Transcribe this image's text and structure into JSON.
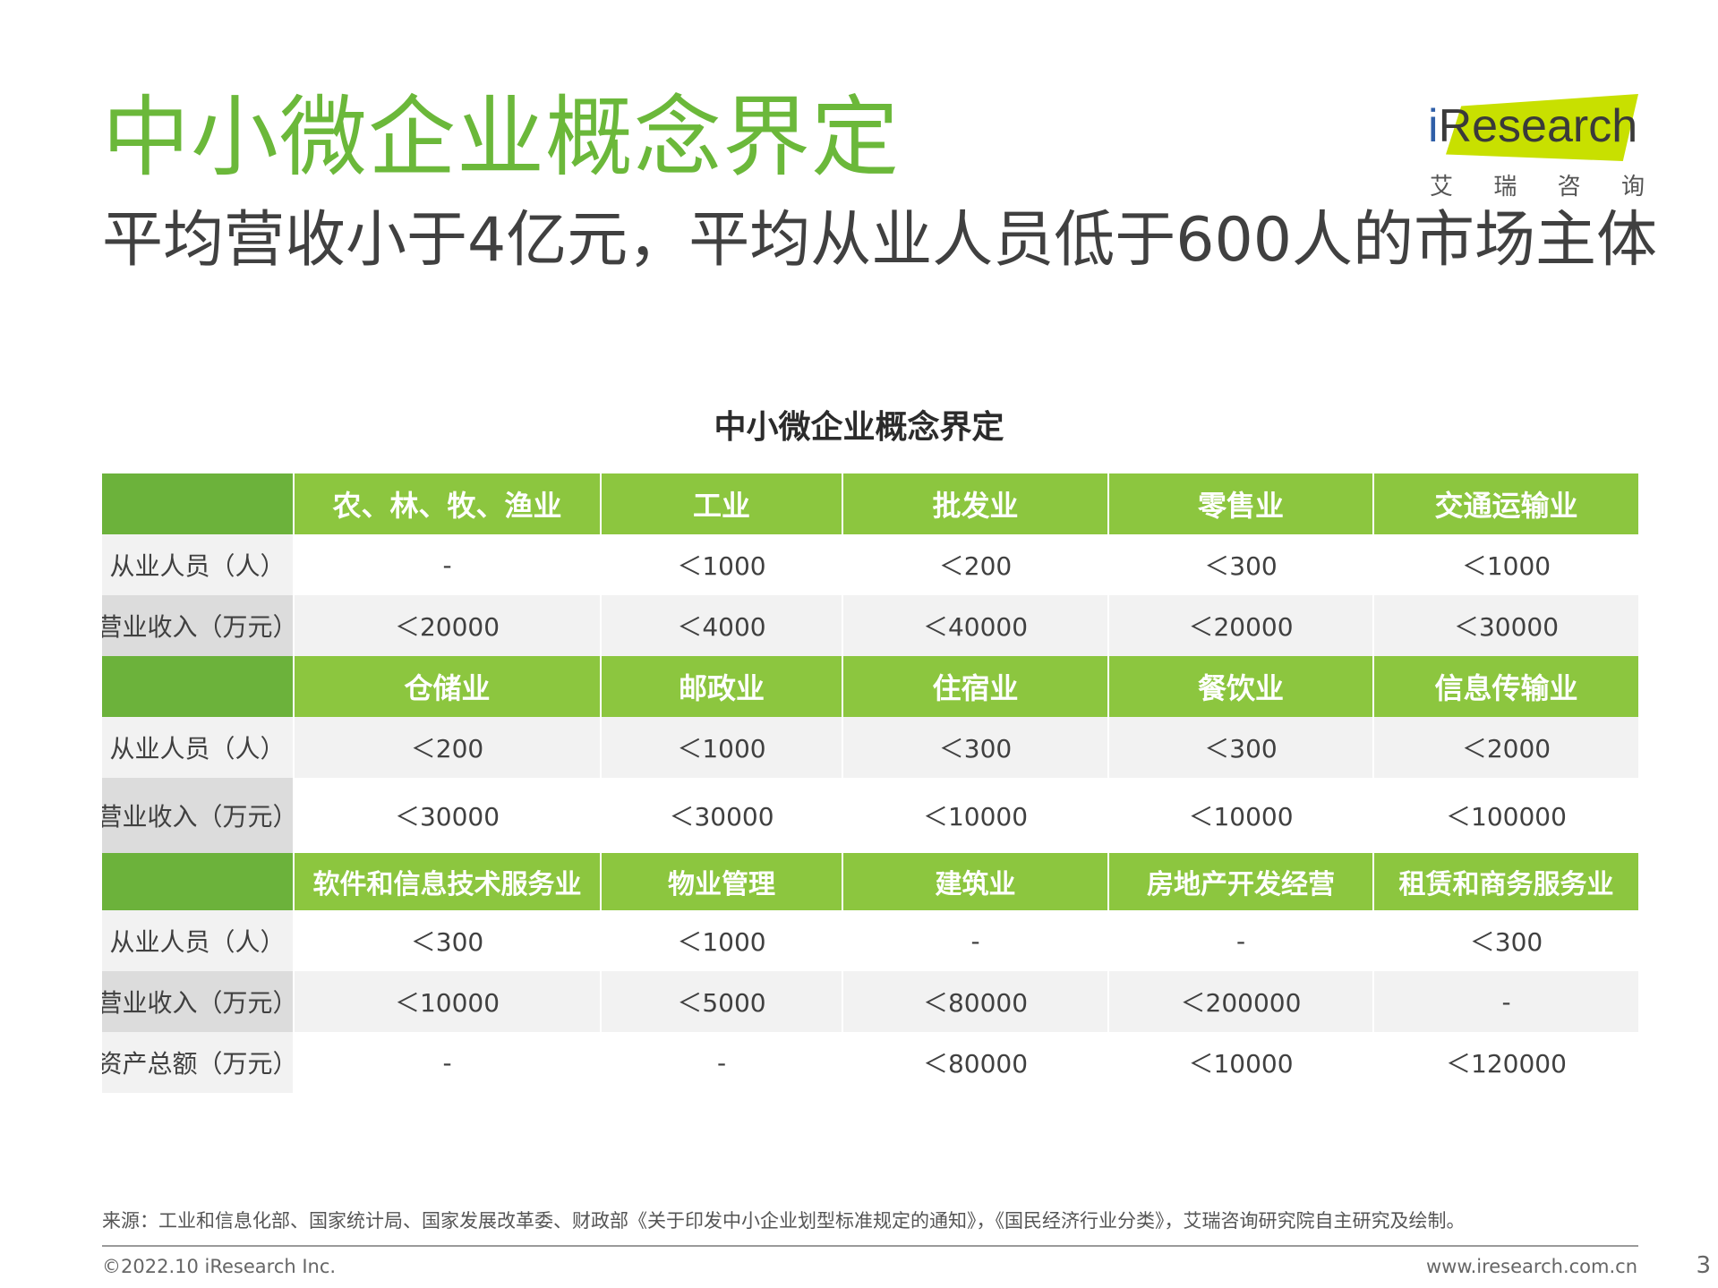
{
  "title": "中小微企业概念界定",
  "subtitle": "平均营收小于4亿元，平均从业人员低于600人的市场主体",
  "logo": {
    "word_dot": "i",
    "word_rest": "Research",
    "cn": [
      "艾",
      "瑞",
      "咨",
      "询"
    ]
  },
  "table": {
    "title": "中小微企业概念界定",
    "sections": [
      {
        "industries": [
          "农、林、牧、渔业",
          "工业",
          "批发业",
          "零售业",
          "交通运输业"
        ],
        "rows": [
          {
            "label": "从业人员（人）",
            "values": [
              "-",
              "＜1000",
              "＜200",
              "＜300",
              "＜1000"
            ]
          },
          {
            "label": "营业收入（万元）",
            "values": [
              "＜20000",
              "＜4000",
              "＜40000",
              "＜20000",
              "＜30000"
            ]
          }
        ]
      },
      {
        "industries": [
          "仓储业",
          "邮政业",
          "住宿业",
          "餐饮业",
          "信息传输业"
        ],
        "rows": [
          {
            "label": "从业人员（人）",
            "values": [
              "＜200",
              "＜1000",
              "＜300",
              "＜300",
              "＜2000"
            ]
          },
          {
            "label": "营业收入（万元）",
            "values": [
              "＜30000",
              "＜30000",
              "＜10000",
              "＜10000",
              "＜100000"
            ]
          }
        ]
      },
      {
        "industries": [
          "软件和信息技术服务业",
          "物业管理",
          "建筑业",
          "房地产开发经营",
          "租赁和商务服务业"
        ],
        "rows": [
          {
            "label": "从业人员（人）",
            "values": [
              "＜300",
              "＜1000",
              "-",
              "-",
              "＜300"
            ]
          },
          {
            "label": "营业收入（万元）",
            "values": [
              "＜10000",
              "＜5000",
              "＜80000",
              "＜200000",
              "-"
            ]
          },
          {
            "label": "资产总额（万元）",
            "values": [
              "-",
              "-",
              "＜80000",
              "＜10000",
              "＜120000"
            ]
          }
        ]
      }
    ]
  },
  "source": "来源：工业和信息化部、国家统计局、国家发展改革委、财政部《关于印发中小企业划型标准规定的通知》，《国民经济行业分类》，艾瑞咨询研究院自主研究及绘制。",
  "footer": {
    "copyright": "©2022.10 iResearch Inc.",
    "website": "www.iresearch.com.cn",
    "page": "3"
  },
  "colors": {
    "title_green": "#6bb83a",
    "header_green": "#8cc63f",
    "header_corner": "#6cb23b",
    "logo_band": "#c8e000"
  }
}
